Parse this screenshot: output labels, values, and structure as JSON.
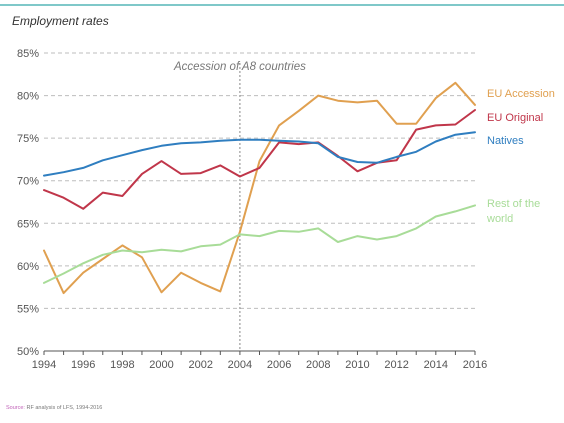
{
  "chart_data": {
    "type": "line",
    "title": "Employment rates",
    "xlabel": "",
    "ylabel": "",
    "x": [
      1994,
      1995,
      1996,
      1997,
      1998,
      1999,
      2000,
      2001,
      2002,
      2003,
      2004,
      2005,
      2006,
      2007,
      2008,
      2009,
      2010,
      2011,
      2012,
      2013,
      2014,
      2015,
      2016
    ],
    "xlim": [
      1994,
      2016
    ],
    "ylim": [
      50,
      85
    ],
    "x_ticks": [
      1994,
      1996,
      1998,
      2000,
      2002,
      2004,
      2006,
      2008,
      2010,
      2012,
      2014,
      2016
    ],
    "y_ticks": [
      50,
      55,
      60,
      65,
      70,
      75,
      80,
      85
    ],
    "y_tick_labels": [
      "50%",
      "55%",
      "60%",
      "65%",
      "70%",
      "75%",
      "80%",
      "85%"
    ],
    "grid": "horizontal dashed",
    "legend_placement": "right",
    "annotation": {
      "text": "Accession of A8 countries",
      "x": 2004
    },
    "series": [
      {
        "name": "EU Accession",
        "color": "#e0a050",
        "values": [
          61.8,
          56.8,
          59.2,
          60.8,
          62.4,
          61.0,
          56.9,
          59.2,
          58.0,
          57.0,
          64.0,
          72.3,
          76.5,
          78.2,
          80.0,
          79.4,
          79.2,
          79.4,
          76.7,
          76.7,
          79.7,
          81.5,
          78.9
        ]
      },
      {
        "name": "EU Original",
        "color": "#c0364a",
        "values": [
          68.9,
          68.0,
          66.7,
          68.6,
          68.2,
          70.8,
          72.3,
          70.8,
          70.9,
          71.8,
          70.5,
          71.5,
          74.5,
          74.3,
          74.5,
          72.9,
          71.1,
          72.1,
          72.4,
          76.0,
          76.5,
          76.6,
          78.3
        ]
      },
      {
        "name": "Natives",
        "color": "#2f7ec0",
        "values": [
          70.6,
          71.0,
          71.5,
          72.4,
          73.0,
          73.6,
          74.1,
          74.4,
          74.5,
          74.7,
          74.8,
          74.8,
          74.7,
          74.6,
          74.4,
          72.8,
          72.2,
          72.1,
          72.8,
          73.4,
          74.6,
          75.4,
          75.7
        ]
      },
      {
        "name": "Rest of the world",
        "color": "#a8dc98",
        "values": [
          58.0,
          59.1,
          60.3,
          61.3,
          61.8,
          61.6,
          61.9,
          61.7,
          62.3,
          62.5,
          63.7,
          63.5,
          64.1,
          64.0,
          64.4,
          62.8,
          63.5,
          63.1,
          63.5,
          64.4,
          65.8,
          66.4,
          67.1
        ]
      }
    ]
  },
  "source_label": "Source:",
  "source_text": "RF analysis of LFS, 1994-2016",
  "colors": {
    "top_rule": "#7fc8c9",
    "grid": "#bdbdbd",
    "axis": "#555555",
    "tick_text": "#555555",
    "annotation": "#777777"
  }
}
